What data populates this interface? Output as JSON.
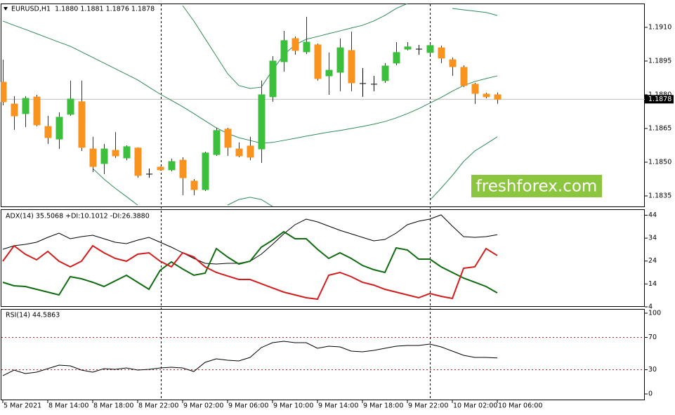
{
  "chart_data": [
    {
      "type": "candlestick",
      "title": "EURUSD,H1  1.1880 1.1881 1.1876 1.1878",
      "annotation": "freshforex.com",
      "categories": [
        "5 Mar 2021",
        null,
        null,
        null,
        "8 Mar 14:00",
        null,
        null,
        null,
        "8 Mar 18:00",
        null,
        null,
        null,
        "8 Mar 22:00",
        null,
        null,
        null,
        "9 Mar 02:00",
        null,
        null,
        null,
        "9 Mar 06:00",
        null,
        null,
        null,
        "9 Mar 10:00",
        null,
        null,
        null,
        "9 Mar 14:00",
        null,
        null,
        null,
        "9 Mar 18:00",
        null,
        null,
        null,
        "9 Mar 22:00",
        null,
        null,
        null,
        "10 Mar 02:00",
        null,
        null,
        null,
        "10 Mar 06:00"
      ],
      "open": [
        1.18856,
        1.18759,
        1.18716,
        1.1879,
        1.18659,
        1.18603,
        1.18713,
        1.18769,
        1.18559,
        1.18494,
        1.18553,
        1.18519,
        1.18563,
        1.18447,
        1.18478,
        1.18466,
        1.18509,
        1.18416,
        1.18378,
        1.18534,
        1.18647,
        1.18559,
        1.18572,
        1.18559,
        1.18791,
        1.18947,
        1.1905,
        1.18991,
        1.19022,
        1.18884,
        1.189,
        1.18997,
        1.1885,
        1.18847,
        1.18863,
        1.18941,
        1.19003,
        1.19003,
        1.18988,
        1.19009,
        1.18956,
        1.18922,
        1.18847,
        1.18803,
        1.188
      ],
      "high": [
        1.18956,
        1.18794,
        1.18794,
        1.188,
        1.18706,
        1.18722,
        1.18863,
        1.18863,
        1.18613,
        1.18581,
        1.18634,
        1.18575,
        1.18566,
        1.18472,
        1.18481,
        1.18516,
        1.18522,
        1.18425,
        1.18547,
        1.18653,
        1.18653,
        1.18588,
        1.18613,
        1.18863,
        1.18972,
        1.19084,
        1.19059,
        1.19147,
        1.19028,
        1.18988,
        1.1905,
        1.19081,
        1.18919,
        1.18884,
        1.18941,
        1.19034,
        1.19034,
        1.19022,
        1.19028,
        1.19019,
        1.18966,
        1.18931,
        1.18853,
        1.18809,
        1.1881
      ],
      "low": [
        1.18753,
        1.18644,
        1.18656,
        1.1866,
        1.18581,
        1.18559,
        1.18706,
        1.1855,
        1.18456,
        1.18447,
        1.18519,
        1.18509,
        1.18431,
        1.18431,
        1.18463,
        1.18459,
        1.18353,
        1.18353,
        1.18372,
        1.18528,
        1.18528,
        1.18522,
        1.18509,
        1.18497,
        1.18769,
        1.18903,
        1.18978,
        1.18981,
        1.18863,
        1.188,
        1.18816,
        1.18816,
        1.18791,
        1.18816,
        1.18853,
        1.18931,
        1.18997,
        1.18978,
        1.18978,
        1.18941,
        1.18884,
        1.18834,
        1.18759,
        1.18784,
        1.1876
      ],
      "close": [
        1.18769,
        1.18706,
        1.18784,
        1.18666,
        1.18609,
        1.187,
        1.18781,
        1.18566,
        1.18481,
        1.18559,
        1.18528,
        1.18569,
        1.18441,
        1.18447,
        1.18466,
        1.18503,
        1.18431,
        1.18378,
        1.18541,
        1.18641,
        1.18566,
        1.18528,
        1.18522,
        1.188,
        1.1895,
        1.19041,
        1.18997,
        1.19034,
        1.18872,
        1.18909,
        1.19009,
        1.18853,
        1.1885,
        1.18847,
        1.18928,
        1.18988,
        1.19013,
        1.19003,
        1.19019,
        1.18963,
        1.18925,
        1.18841,
        1.18806,
        1.18791,
        1.1878
      ],
      "up_color": "#3cbf3c",
      "down_color": "#f7931e",
      "doji_color": "#000000",
      "bands": [
        {
          "color": "#2e8b57",
          "values": [
            null,
            null,
            null,
            null,
            null,
            null,
            null,
            null,
            null,
            null,
            null,
            null,
            null,
            null,
            null,
            null,
            1.19197,
            1.19128,
            1.1905,
            1.18972,
            1.18894,
            1.18841,
            1.18828,
            1.18834,
            1.18909,
            1.18978,
            1.19022,
            1.19047,
            1.19059,
            1.19072,
            1.19084,
            1.19097,
            1.19109,
            1.19128,
            1.19153,
            1.19184,
            1.19206,
            null,
            null,
            null,
            1.19184,
            1.19178,
            1.19172,
            1.19166,
            1.19153
          ]
        },
        {
          "color": "#2e8b57",
          "values": [
            1.19128,
            1.19109,
            1.19091,
            1.19072,
            1.19053,
            1.19034,
            1.19016,
            1.18991,
            1.18966,
            1.18941,
            1.18916,
            1.18891,
            1.18866,
            1.18834,
            1.18803,
            1.18775,
            1.18747,
            1.18716,
            1.18684,
            1.18653,
            1.18628,
            1.18609,
            1.18597,
            1.18584,
            1.18588,
            1.18597,
            1.18606,
            1.18616,
            1.18625,
            1.18634,
            1.18641,
            1.1865,
            1.18659,
            1.18669,
            1.18681,
            1.18697,
            1.18716,
            1.18738,
            1.18763,
            1.18788,
            1.18816,
            1.18841,
            1.18859,
            1.18872,
            1.18884
          ]
        },
        {
          "color": "#2e8b57",
          "values": [
            null,
            null,
            null,
            null,
            null,
            null,
            null,
            null,
            1.18472,
            1.18425,
            1.18384,
            1.18347,
            1.18309,
            null,
            null,
            null,
            null,
            null,
            null,
            null,
            1.18309,
            1.18334,
            1.18344,
            1.18334,
            1.18303,
            null,
            null,
            null,
            null,
            null,
            null,
            null,
            null,
            null,
            null,
            null,
            null,
            null,
            1.18331,
            1.18384,
            1.18441,
            1.18503,
            1.1855,
            1.18581,
            1.18613
          ]
        }
      ],
      "ylim": [
        1.183,
        1.19206
      ],
      "yticks": [
        1.1835,
        {
          "value": 1.185,
          "label": "1.1850"
        },
        1.1865,
        {
          "value": 1.188,
          "label": "1.1880"
        },
        1.1895,
        {
          "value": 1.191,
          "label": "1.1910"
        }
      ]
    },
    {
      "type": "line",
      "title": "ADX(14) 35.5068 +DI:10.1012 -DI:26.3880",
      "series": [
        {
          "color": "#000000",
          "width": 1,
          "values": [
            29.13,
            30.66,
            31.28,
            32.2,
            34.34,
            36.18,
            33.73,
            34.65,
            35.26,
            33.73,
            32.2,
            31.58,
            33.11,
            34.34,
            32.2,
            30.05,
            27.6,
            25.15,
            23,
            22.69,
            23,
            23,
            23.92,
            26.98,
            31.28,
            35.87,
            39.86,
            42.31,
            41.08,
            39.24,
            37.4,
            35.87,
            34.34,
            32.81,
            33.42,
            36.18,
            39.86,
            41.39,
            42.31,
            44.15,
            39.24,
            34.65,
            34.34,
            34.65,
            35.5068
          ]
        },
        {
          "color": "#0f6b0f",
          "width": 2,
          "values": [
            14.73,
            13.19,
            12.89,
            11.66,
            10.44,
            9.21,
            17.18,
            16.26,
            14.73,
            12.89,
            15.34,
            17.79,
            14.73,
            11.66,
            19.94,
            23.61,
            20.55,
            17.79,
            18.71,
            29.44,
            25.76,
            22.69,
            23.92,
            30.05,
            33.11,
            36.79,
            33.73,
            33.73,
            29.13,
            25.15,
            27.6,
            25.15,
            22.08,
            20.24,
            19.02,
            29.74,
            28.82,
            24.84,
            24.84,
            21.47,
            19.02,
            16.57,
            14.73,
            12.89,
            10.1012
          ]
        },
        {
          "color": "#d41c1c",
          "width": 2,
          "values": [
            23.92,
            30.66,
            26.98,
            24.53,
            28.21,
            23.92,
            21.47,
            23.92,
            30.66,
            27.6,
            25.15,
            23.92,
            26.98,
            27.6,
            23.92,
            21.47,
            27.6,
            25.76,
            21.47,
            19.02,
            17.48,
            15.95,
            15.95,
            14.11,
            12.27,
            10.44,
            9.21,
            7.98,
            7.37,
            17.79,
            19.02,
            17.18,
            14.73,
            13.5,
            11.66,
            10.44,
            9.21,
            7.98,
            9.82,
            8.6,
            7.68,
            20.86,
            21.47,
            29.44,
            26.388
          ]
        }
      ],
      "ylim": [
        4,
        46.6
      ],
      "yticks": [
        44,
        34,
        24,
        14,
        4
      ]
    },
    {
      "type": "line",
      "title": "RSI(14) 44.5863",
      "series": [
        {
          "color": "#000000",
          "width": 1,
          "values": [
            22.61,
            29.57,
            25.22,
            26.96,
            31.3,
            35.65,
            34.78,
            29.57,
            26.96,
            31.3,
            30.43,
            32.17,
            29.57,
            30.43,
            32.17,
            33.04,
            32.17,
            27.83,
            39.13,
            43.48,
            41.74,
            40.87,
            45.22,
            57.39,
            63.48,
            65.22,
            63.48,
            63.48,
            56.52,
            59.13,
            58.26,
            53.04,
            52.17,
            53.91,
            56.52,
            59.13,
            60,
            60,
            61.74,
            58.26,
            53.04,
            47.83,
            45.22,
            45.22,
            44.5863
          ]
        }
      ],
      "levels": [
        70,
        30
      ],
      "level_color": "#b22222",
      "ylim": [
        -7.8,
        105.2
      ],
      "yticks": [
        100,
        70,
        30,
        0
      ]
    }
  ]
}
